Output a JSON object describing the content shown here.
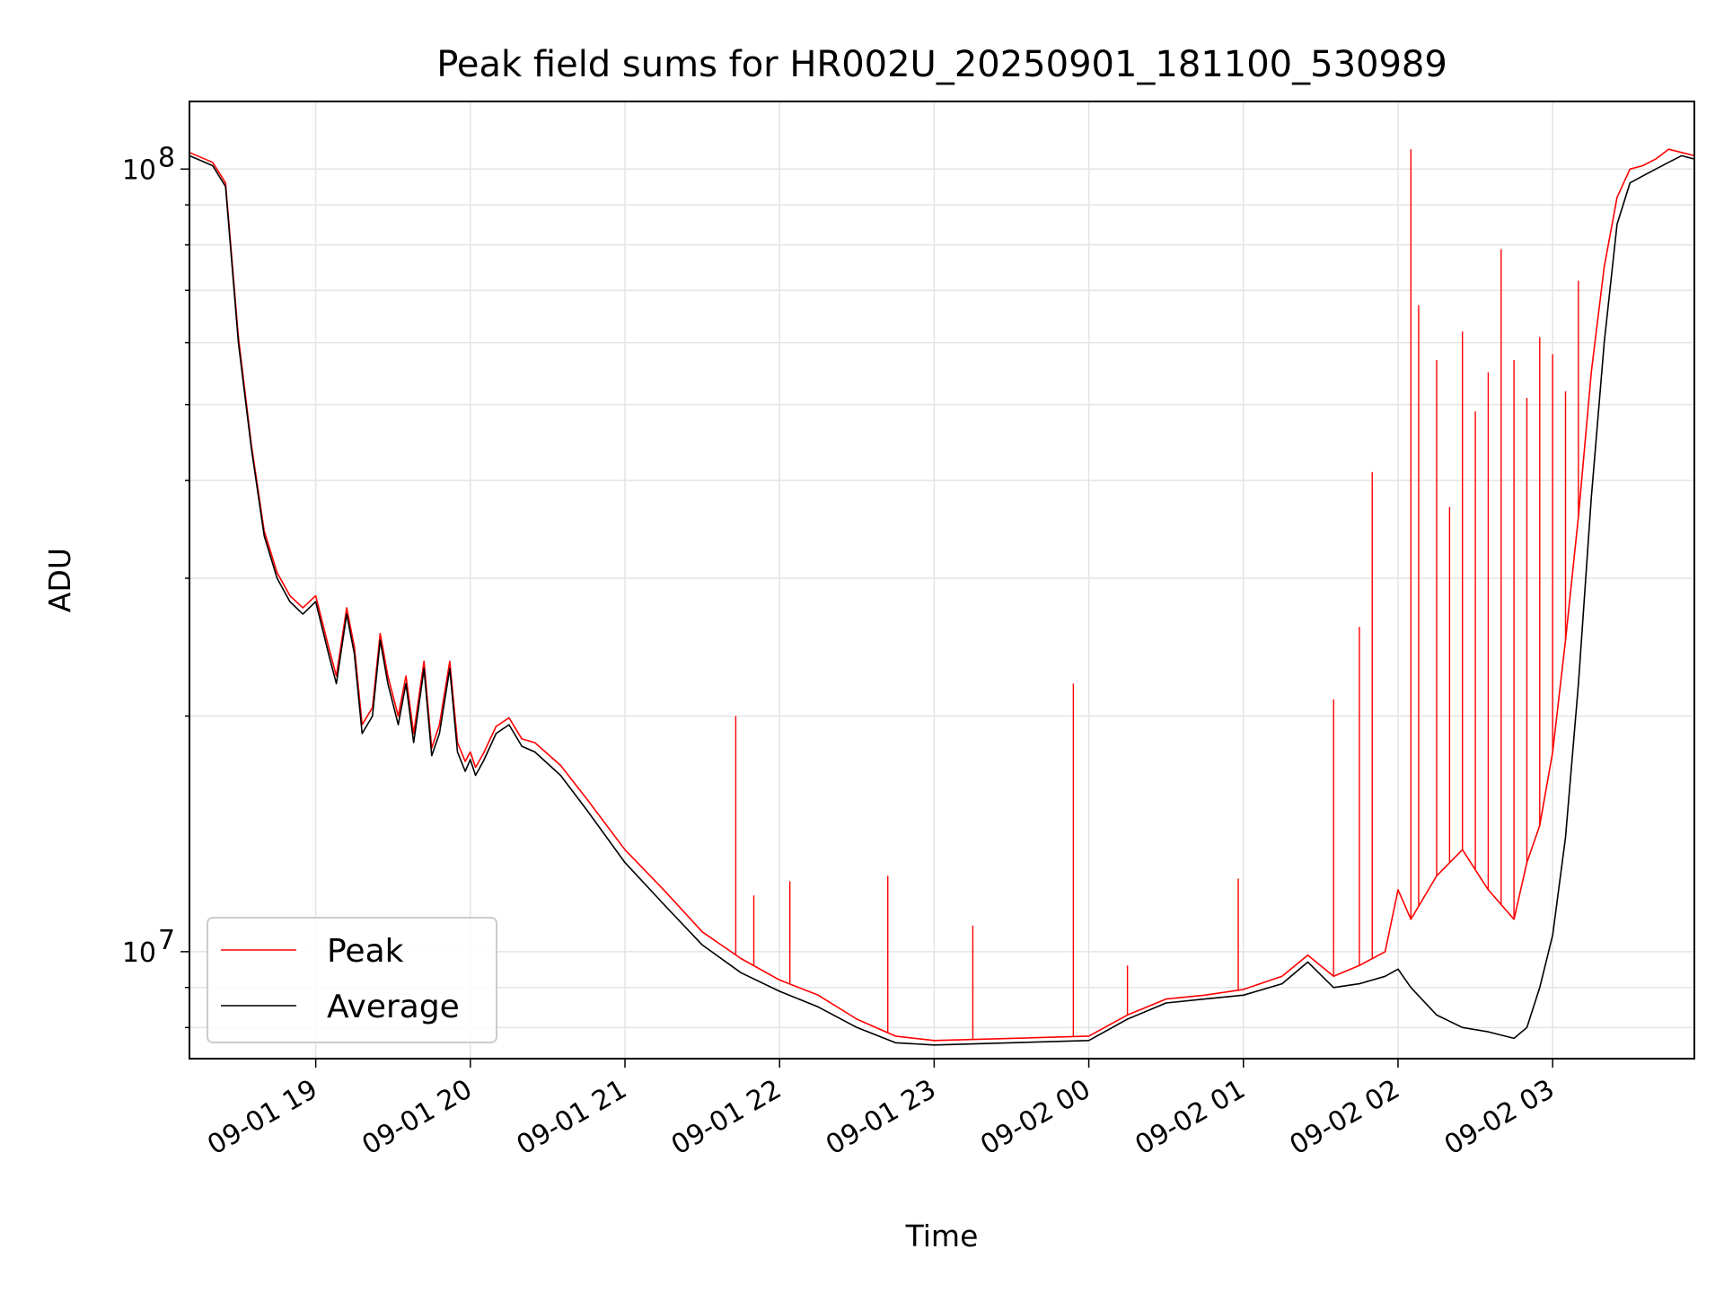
{
  "chart_data": {
    "type": "line",
    "title": "Peak field sums for HR002U_20250901_181100_530989",
    "xlabel": "Time",
    "ylabel": "ADU",
    "yscale": "log",
    "ylim": [
      7300000,
      122000000
    ],
    "xlim": [
      "09-01 18:11",
      "09-02 03:55"
    ],
    "x_tick_labels": [
      "09-01 19",
      "09-01 20",
      "09-01 21",
      "09-01 22",
      "09-01 23",
      "09-02 00",
      "09-02 01",
      "09-02 02",
      "09-02 03"
    ],
    "y_tick_labels": [
      {
        "base": "10",
        "exp": "7",
        "value": 10000000
      },
      {
        "base": "10",
        "exp": "8",
        "value": 100000000
      }
    ],
    "grid": true,
    "legend_position": "lower-left",
    "series": [
      {
        "name": "Average",
        "color": "#000000",
        "x": [
          "09-01 18:11",
          "09-01 18:20",
          "09-01 18:25",
          "09-01 18:30",
          "09-01 18:35",
          "09-01 18:40",
          "09-01 18:45",
          "09-01 18:50",
          "09-01 18:55",
          "09-01 19:00",
          "09-01 19:05",
          "09-01 19:08",
          "09-01 19:12",
          "09-01 19:15",
          "09-01 19:18",
          "09-01 19:22",
          "09-01 19:25",
          "09-01 19:28",
          "09-01 19:32",
          "09-01 19:35",
          "09-01 19:38",
          "09-01 19:42",
          "09-01 19:45",
          "09-01 19:48",
          "09-01 19:52",
          "09-01 19:55",
          "09-01 19:58",
          "09-01 20:00",
          "09-01 20:02",
          "09-01 20:05",
          "09-01 20:10",
          "09-01 20:15",
          "09-01 20:20",
          "09-01 20:25",
          "09-01 20:35",
          "09-01 20:45",
          "09-01 21:00",
          "09-01 21:15",
          "09-01 21:30",
          "09-01 21:45",
          "09-01 22:00",
          "09-01 22:15",
          "09-01 22:30",
          "09-01 22:45",
          "09-01 23:00",
          "09-01 23:30",
          "09-02 00:00",
          "09-02 00:15",
          "09-02 00:30",
          "09-02 00:45",
          "09-02 01:00",
          "09-02 01:15",
          "09-02 01:25",
          "09-02 01:35",
          "09-02 01:45",
          "09-02 01:55",
          "09-02 02:00",
          "09-02 02:05",
          "09-02 02:15",
          "09-02 02:25",
          "09-02 02:35",
          "09-02 02:45",
          "09-02 02:50",
          "09-02 02:55",
          "09-02 03:00",
          "09-02 03:05",
          "09-02 03:10",
          "09-02 03:15",
          "09-02 03:20",
          "09-02 03:25",
          "09-02 03:30",
          "09-02 03:35",
          "09-02 03:40",
          "09-02 03:45",
          "09-02 03:50",
          "09-02 03:55"
        ],
        "values": [
          104000000,
          101000000,
          95000000,
          60000000,
          44000000,
          34000000,
          30000000,
          28000000,
          27000000,
          28000000,
          24000000,
          22000000,
          27000000,
          24000000,
          19000000,
          20000000,
          25000000,
          22000000,
          19500000,
          22000000,
          18500000,
          23000000,
          17800000,
          19000000,
          23000000,
          18000000,
          17000000,
          17600000,
          16800000,
          17500000,
          19000000,
          19500000,
          18300000,
          18000000,
          16800000,
          15200000,
          13000000,
          11500000,
          10200000,
          9400000,
          8900000,
          8500000,
          8000000,
          7650000,
          7600000,
          7650000,
          7700000,
          8200000,
          8600000,
          8700000,
          8800000,
          9100000,
          9700000,
          9000000,
          9100000,
          9300000,
          9500000,
          9000000,
          8300000,
          8000000,
          7900000,
          7750000,
          8000000,
          9000000,
          10500000,
          14000000,
          22000000,
          38000000,
          60000000,
          85000000,
          96000000,
          98000000,
          100000000,
          102000000,
          104000000,
          103000000
        ]
      },
      {
        "name": "Peak",
        "color": "#ff0000",
        "x": [
          "09-01 18:11",
          "09-01 18:20",
          "09-01 18:25",
          "09-01 18:30",
          "09-01 18:35",
          "09-01 18:40",
          "09-01 18:45",
          "09-01 18:50",
          "09-01 18:55",
          "09-01 19:00",
          "09-01 19:05",
          "09-01 19:08",
          "09-01 19:12",
          "09-01 19:15",
          "09-01 19:18",
          "09-01 19:22",
          "09-01 19:25",
          "09-01 19:28",
          "09-01 19:32",
          "09-01 19:35",
          "09-01 19:38",
          "09-01 19:42",
          "09-01 19:45",
          "09-01 19:48",
          "09-01 19:52",
          "09-01 19:55",
          "09-01 19:58",
          "09-01 20:00",
          "09-01 20:02",
          "09-01 20:05",
          "09-01 20:10",
          "09-01 20:15",
          "09-01 20:20",
          "09-01 20:25",
          "09-01 20:35",
          "09-01 20:45",
          "09-01 21:00",
          "09-01 21:15",
          "09-01 21:30",
          "09-01 21:45",
          "09-01 22:00",
          "09-01 22:15",
          "09-01 22:30",
          "09-01 22:45",
          "09-01 23:00",
          "09-01 23:30",
          "09-02 00:00",
          "09-02 00:15",
          "09-02 00:30",
          "09-02 00:45",
          "09-02 01:00",
          "09-02 01:15",
          "09-02 01:25",
          "09-02 01:35",
          "09-02 01:45",
          "09-02 01:55",
          "09-02 02:00",
          "09-02 02:05",
          "09-02 02:15",
          "09-02 02:25",
          "09-02 02:35",
          "09-02 02:45",
          "09-02 02:50",
          "09-02 02:55",
          "09-02 03:00",
          "09-02 03:05",
          "09-02 03:10",
          "09-02 03:15",
          "09-02 03:20",
          "09-02 03:25",
          "09-02 03:30",
          "09-02 03:35",
          "09-02 03:40",
          "09-02 03:45",
          "09-02 03:50",
          "09-02 03:55"
        ],
        "values": [
          105000000,
          102000000,
          96000000,
          61000000,
          44500000,
          34500000,
          30500000,
          28500000,
          27500000,
          28500000,
          24500000,
          22500000,
          27500000,
          24500000,
          19500000,
          20500000,
          25500000,
          22500000,
          20000000,
          22500000,
          19000000,
          23500000,
          18200000,
          19500000,
          23500000,
          18500000,
          17500000,
          18000000,
          17200000,
          17900000,
          19400000,
          19900000,
          18700000,
          18500000,
          17300000,
          15700000,
          13500000,
          12000000,
          10600000,
          9800000,
          9200000,
          8800000,
          8200000,
          7800000,
          7700000,
          7750000,
          7800000,
          8300000,
          8700000,
          8800000,
          8950000,
          9300000,
          9900000,
          9300000,
          9600000,
          10000000,
          12000000,
          11000000,
          12500000,
          13500000,
          12000000,
          11000000,
          13000000,
          14500000,
          18000000,
          25000000,
          36000000,
          55000000,
          75000000,
          92000000,
          100000000,
          101000000,
          103000000,
          106000000,
          105000000,
          104000000
        ],
        "spikes": [
          {
            "x": "09-01 21:43",
            "value": 20000000
          },
          {
            "x": "09-01 21:50",
            "value": 11800000
          },
          {
            "x": "09-01 22:04",
            "value": 12300000
          },
          {
            "x": "09-01 22:42",
            "value": 12500000
          },
          {
            "x": "09-01 23:15",
            "value": 10800000
          },
          {
            "x": "09-01 23:54",
            "value": 22000000
          },
          {
            "x": "09-02 00:15",
            "value": 9600000
          },
          {
            "x": "09-02 00:58",
            "value": 12400000
          },
          {
            "x": "09-02 01:35",
            "value": 21000000
          },
          {
            "x": "09-02 01:45",
            "value": 26000000
          },
          {
            "x": "09-02 01:50",
            "value": 41000000
          },
          {
            "x": "09-02 02:05",
            "value": 106000000
          },
          {
            "x": "09-02 02:08",
            "value": 67000000
          },
          {
            "x": "09-02 02:15",
            "value": 57000000
          },
          {
            "x": "09-02 02:20",
            "value": 37000000
          },
          {
            "x": "09-02 02:25",
            "value": 62000000
          },
          {
            "x": "09-02 02:30",
            "value": 49000000
          },
          {
            "x": "09-02 02:35",
            "value": 55000000
          },
          {
            "x": "09-02 02:40",
            "value": 79000000
          },
          {
            "x": "09-02 02:45",
            "value": 57000000
          },
          {
            "x": "09-02 02:50",
            "value": 51000000
          },
          {
            "x": "09-02 02:55",
            "value": 61000000
          },
          {
            "x": "09-02 03:00",
            "value": 58000000
          },
          {
            "x": "09-02 03:05",
            "value": 52000000
          },
          {
            "x": "09-02 03:10",
            "value": 72000000
          }
        ]
      }
    ]
  }
}
